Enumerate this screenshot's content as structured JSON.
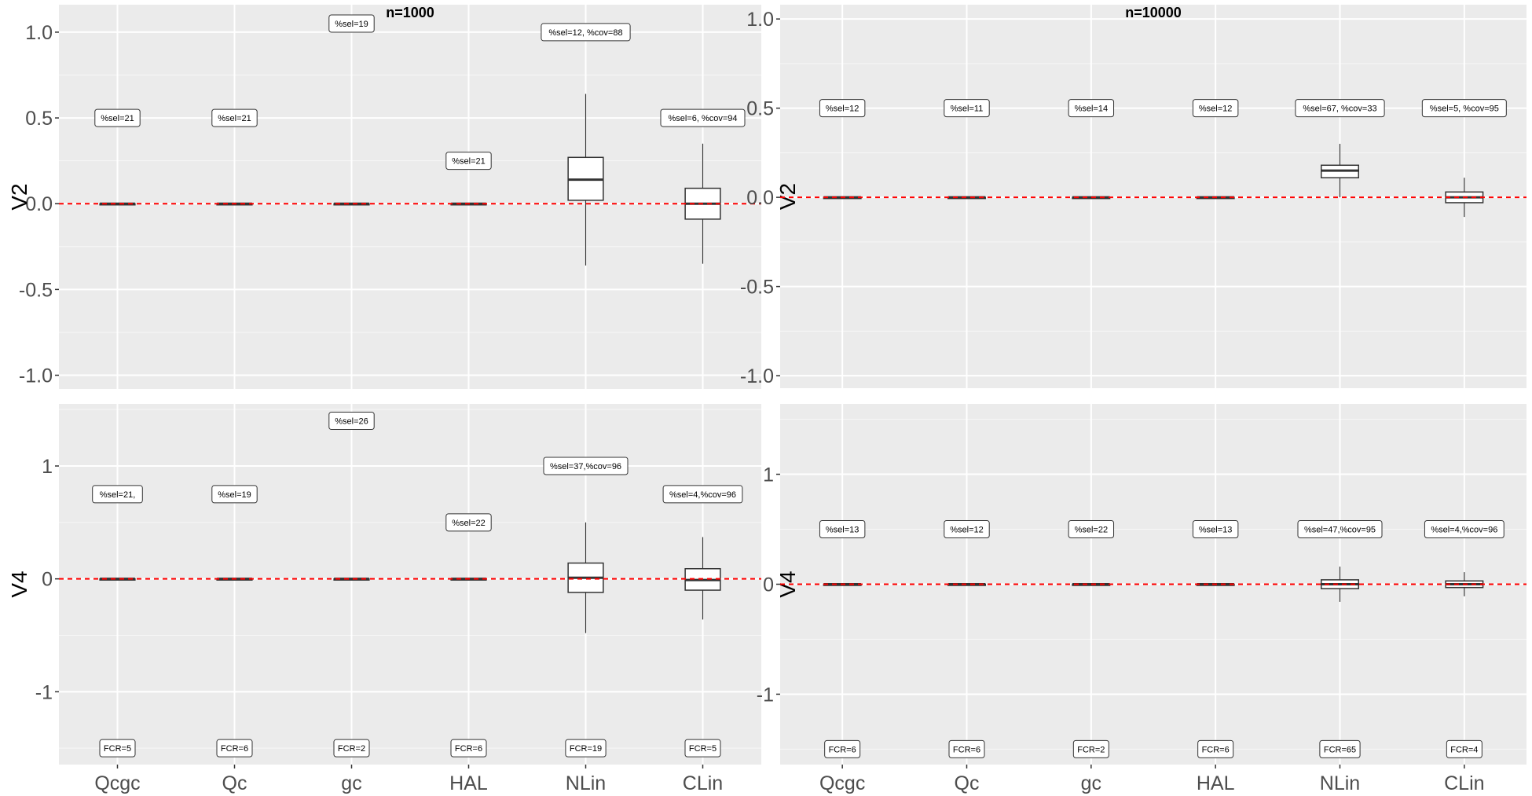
{
  "chart_data": [
    {
      "type": "box",
      "title": "n=1000",
      "ylabel": "V2",
      "xlabel": "",
      "ylim": [
        -1.08,
        1.16
      ],
      "yticks": [
        "1.0",
        "0.5",
        "0.0",
        "-0.5",
        "-1.0"
      ],
      "ytick_values": [
        1.0,
        0.5,
        0.0,
        -0.5,
        -1.0
      ],
      "minor_grid": [
        -0.75,
        -0.25,
        0.25,
        0.75
      ],
      "grid": true,
      "reference_line": {
        "y": 0,
        "color": "#ff0000",
        "style": "dashed"
      },
      "categories": [
        "Qcgc",
        "Qc",
        "gc",
        "HAL",
        "NLin",
        "CLin"
      ],
      "show_xticks": false,
      "boxes": [
        {
          "min": 0,
          "q1": 0,
          "median": 0,
          "q3": 0,
          "max": 0
        },
        {
          "min": 0,
          "q1": 0,
          "median": 0,
          "q3": 0,
          "max": 0
        },
        {
          "min": 0,
          "q1": 0,
          "median": 0,
          "q3": 0,
          "max": 0
        },
        {
          "min": 0,
          "q1": 0,
          "median": 0,
          "q3": 0,
          "max": 0
        },
        {
          "min": -0.36,
          "q1": 0.02,
          "median": 0.14,
          "q3": 0.27,
          "max": 0.64
        },
        {
          "min": -0.35,
          "q1": -0.09,
          "median": 0.0,
          "q3": 0.09,
          "max": 0.35
        }
      ],
      "annotations": [
        {
          "text": "%sel=21",
          "y": 0.5
        },
        {
          "text": "%sel=21",
          "y": 0.5
        },
        {
          "text": "%sel=19",
          "y": 1.05
        },
        {
          "text": "%sel=21",
          "y": 0.25
        },
        {
          "text": "%sel=12, %cov=88",
          "y": 1.0
        },
        {
          "text": "%sel=6, %cov=94",
          "y": 0.5
        }
      ],
      "fcr": []
    },
    {
      "type": "box",
      "title": "n=10000",
      "ylabel": "V2",
      "xlabel": "",
      "ylim": [
        -1.07,
        1.08
      ],
      "yticks": [
        "1.0",
        "0.5",
        "0.0",
        "-0.5",
        "-1.0"
      ],
      "ytick_values": [
        1.0,
        0.5,
        0.0,
        -0.5,
        -1.0
      ],
      "minor_grid": [
        -0.75,
        -0.25,
        0.25,
        0.75
      ],
      "grid": true,
      "reference_line": {
        "y": 0,
        "color": "#ff0000",
        "style": "dashed"
      },
      "categories": [
        "Qcgc",
        "Qc",
        "gc",
        "HAL",
        "NLin",
        "CLin"
      ],
      "show_xticks": false,
      "boxes": [
        {
          "min": 0,
          "q1": 0,
          "median": 0,
          "q3": 0,
          "max": 0
        },
        {
          "min": 0,
          "q1": 0,
          "median": 0,
          "q3": 0,
          "max": 0
        },
        {
          "min": 0,
          "q1": 0,
          "median": 0,
          "q3": 0,
          "max": 0
        },
        {
          "min": 0,
          "q1": 0,
          "median": 0,
          "q3": 0,
          "max": 0
        },
        {
          "min": 0.0,
          "q1": 0.11,
          "median": 0.15,
          "q3": 0.18,
          "max": 0.3
        },
        {
          "min": -0.11,
          "q1": -0.03,
          "median": 0.0,
          "q3": 0.03,
          "max": 0.11
        }
      ],
      "annotations": [
        {
          "text": "%sel=12",
          "y": 0.5
        },
        {
          "text": "%sel=11",
          "y": 0.5
        },
        {
          "text": "%sel=14",
          "y": 0.5
        },
        {
          "text": "%sel=12",
          "y": 0.5
        },
        {
          "text": "%sel=67, %cov=33",
          "y": 0.5
        },
        {
          "text": "%sel=5, %cov=95",
          "y": 0.5
        }
      ],
      "fcr": []
    },
    {
      "type": "box",
      "title": "",
      "ylabel": "V4",
      "xlabel": "",
      "ylim": [
        -1.645,
        1.55
      ],
      "yticks": [
        "1",
        "0",
        "-1"
      ],
      "ytick_values": [
        1,
        0,
        -1
      ],
      "minor_grid": [
        -1.5,
        -0.5,
        0.5,
        1.5
      ],
      "grid": true,
      "reference_line": {
        "y": 0,
        "color": "#ff0000",
        "style": "dashed"
      },
      "categories": [
        "Qcgc",
        "Qc",
        "gc",
        "HAL",
        "NLin",
        "CLin"
      ],
      "show_xticks": true,
      "boxes": [
        {
          "min": 0,
          "q1": 0,
          "median": 0,
          "q3": 0,
          "max": 0
        },
        {
          "min": 0,
          "q1": 0,
          "median": 0,
          "q3": 0,
          "max": 0
        },
        {
          "min": 0,
          "q1": 0,
          "median": 0,
          "q3": 0,
          "max": 0
        },
        {
          "min": 0,
          "q1": 0,
          "median": 0,
          "q3": 0,
          "max": 0
        },
        {
          "min": -0.48,
          "q1": -0.12,
          "median": 0.01,
          "q3": 0.14,
          "max": 0.5
        },
        {
          "min": -0.36,
          "q1": -0.1,
          "median": -0.01,
          "q3": 0.09,
          "max": 0.37
        }
      ],
      "annotations": [
        {
          "text": "%sel=21,",
          "y": 0.75
        },
        {
          "text": "%sel=19",
          "y": 0.75
        },
        {
          "text": "%sel=26",
          "y": 1.4
        },
        {
          "text": "%sel=22",
          "y": 0.5
        },
        {
          "text": "%sel=37,%cov=96",
          "y": 1.0
        },
        {
          "text": "%sel=4,%cov=96",
          "y": 0.75
        }
      ],
      "fcr": [
        "FCR=5",
        "FCR=6",
        "FCR=2",
        "FCR=6",
        "FCR=19",
        "FCR=5"
      ],
      "fcr_y": -1.5
    },
    {
      "type": "box",
      "title": "",
      "ylabel": "V4",
      "xlabel": "",
      "ylim": [
        -1.64,
        1.64
      ],
      "yticks": [
        "1",
        "0",
        "-1"
      ],
      "ytick_values": [
        1,
        0,
        -1
      ],
      "minor_grid": [
        -1.5,
        -0.5,
        0.5,
        1.5
      ],
      "grid": true,
      "reference_line": {
        "y": 0,
        "color": "#ff0000",
        "style": "dashed"
      },
      "categories": [
        "Qcgc",
        "Qc",
        "gc",
        "HAL",
        "NLin",
        "CLin"
      ],
      "show_xticks": true,
      "boxes": [
        {
          "min": 0,
          "q1": 0,
          "median": 0,
          "q3": 0,
          "max": 0
        },
        {
          "min": 0,
          "q1": 0,
          "median": 0,
          "q3": 0,
          "max": 0
        },
        {
          "min": 0,
          "q1": 0,
          "median": 0,
          "q3": 0,
          "max": 0
        },
        {
          "min": 0,
          "q1": 0,
          "median": 0,
          "q3": 0,
          "max": 0
        },
        {
          "min": -0.16,
          "q1": -0.04,
          "median": 0.0,
          "q3": 0.04,
          "max": 0.16
        },
        {
          "min": -0.11,
          "q1": -0.03,
          "median": 0.0,
          "q3": 0.03,
          "max": 0.11
        }
      ],
      "annotations": [
        {
          "text": "%sel=13",
          "y": 0.5
        },
        {
          "text": "%sel=12",
          "y": 0.5
        },
        {
          "text": "%sel=22",
          "y": 0.5
        },
        {
          "text": "%sel=13",
          "y": 0.5
        },
        {
          "text": "%sel=47,%cov=95",
          "y": 0.5
        },
        {
          "text": "%sel=4,%cov=96",
          "y": 0.5
        }
      ],
      "fcr": [
        "FCR=6",
        "FCR=6",
        "FCR=2",
        "FCR=6",
        "FCR=65",
        "FCR=4"
      ],
      "fcr_y": -1.5
    }
  ]
}
